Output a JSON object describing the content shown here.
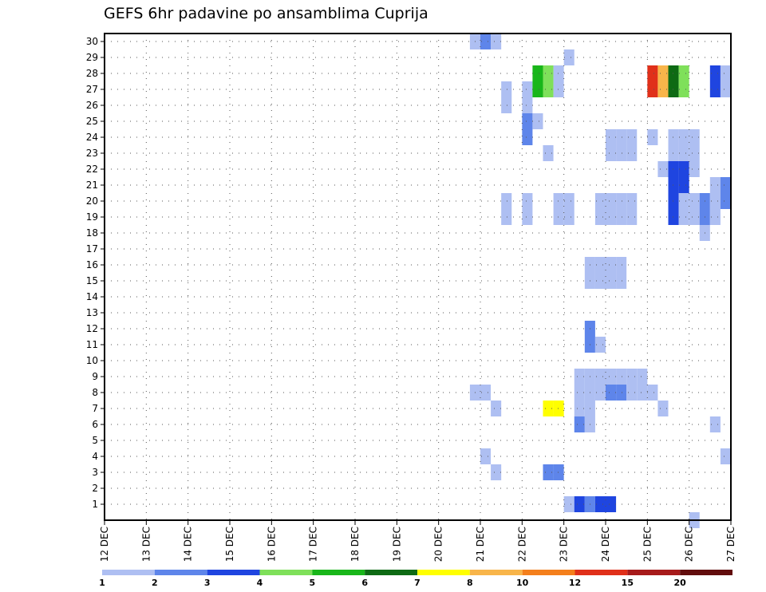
{
  "chart_data": {
    "type": "heatmap",
    "title": "GEFS 6hr padavine po ansamblima Cuprija",
    "xlabel": "",
    "ylabel": "",
    "x_tick_labels": [
      "12 DEC",
      "13 DEC",
      "14 DEC",
      "15 DEC",
      "16 DEC",
      "17 DEC",
      "18 DEC",
      "19 DEC",
      "20 DEC",
      "21 DEC",
      "22 DEC",
      "23 DEC",
      "24 DEC",
      "25 DEC",
      "26 DEC",
      "27 DEC"
    ],
    "x_unit": "6-hour step from 12 DEC",
    "xlim": [
      0,
      60
    ],
    "y_tick_labels": [
      "1",
      "2",
      "3",
      "4",
      "5",
      "6",
      "7",
      "8",
      "9",
      "10",
      "11",
      "12",
      "13",
      "14",
      "15",
      "16",
      "17",
      "18",
      "19",
      "20",
      "21",
      "22",
      "23",
      "24",
      "25",
      "26",
      "27",
      "28",
      "29",
      "30"
    ],
    "ylim": [
      0,
      30
    ],
    "grid": true,
    "colorbar": {
      "labels": [
        "1",
        "2",
        "3",
        "4",
        "5",
        "6",
        "7",
        "8",
        "10",
        "12",
        "15",
        "20"
      ],
      "colors": [
        "#aebff2",
        "#5e85ea",
        "#1f45e0",
        "#7fe05a",
        "#19b61a",
        "#0e6a14",
        "#ffff00",
        "#f8b54a",
        "#f47f1c",
        "#e0301a",
        "#a71b1b",
        "#620d0d"
      ]
    },
    "cells": [
      {
        "member": 1,
        "step": 44.5,
        "cls": 1
      },
      {
        "member": 1,
        "step": 45.5,
        "cls": 3
      },
      {
        "member": 1,
        "step": 46.5,
        "cls": 2
      },
      {
        "member": 1,
        "step": 47.5,
        "cls": 3
      },
      {
        "member": 1,
        "step": 48.5,
        "cls": 3
      },
      {
        "member": 3,
        "step": 42.5,
        "cls": 2
      },
      {
        "member": 3,
        "step": 43.5,
        "cls": 2
      },
      {
        "member": 4,
        "step": 36.5,
        "cls": 1
      },
      {
        "member": 4,
        "step": 59.5,
        "cls": 1
      },
      {
        "member": 3,
        "step": 37.5,
        "cls": 1
      },
      {
        "member": 6,
        "step": 45.5,
        "cls": 2
      },
      {
        "member": 6,
        "step": 46.5,
        "cls": 1
      },
      {
        "member": 6,
        "step": 58.5,
        "cls": 1
      },
      {
        "member": 7,
        "step": 37.5,
        "cls": 1
      },
      {
        "member": 7,
        "step": 42.5,
        "cls": 7
      },
      {
        "member": 7,
        "step": 43.5,
        "cls": 7
      },
      {
        "member": 7,
        "step": 45.5,
        "cls": 1
      },
      {
        "member": 7,
        "step": 46.5,
        "cls": 1
      },
      {
        "member": 7,
        "step": 53.5,
        "cls": 1
      },
      {
        "member": 8,
        "step": 35.5,
        "cls": 1
      },
      {
        "member": 8,
        "step": 36.5,
        "cls": 1
      },
      {
        "member": 8,
        "step": 45.5,
        "cls": 1
      },
      {
        "member": 8,
        "step": 46.5,
        "cls": 1
      },
      {
        "member": 8,
        "step": 47.5,
        "cls": 1
      },
      {
        "member": 8,
        "step": 48.5,
        "cls": 2
      },
      {
        "member": 8,
        "step": 49.5,
        "cls": 2
      },
      {
        "member": 8,
        "step": 50.5,
        "cls": 1
      },
      {
        "member": 8,
        "step": 51.5,
        "cls": 1
      },
      {
        "member": 8,
        "step": 52.5,
        "cls": 1
      },
      {
        "member": 9,
        "step": 45.5,
        "cls": 1
      },
      {
        "member": 9,
        "step": 46.5,
        "cls": 1
      },
      {
        "member": 9,
        "step": 47.5,
        "cls": 1
      },
      {
        "member": 9,
        "step": 48.5,
        "cls": 1
      },
      {
        "member": 9,
        "step": 49.5,
        "cls": 1
      },
      {
        "member": 9,
        "step": 50.5,
        "cls": 1
      },
      {
        "member": 9,
        "step": 51.5,
        "cls": 1
      },
      {
        "member": 11,
        "step": 46.5,
        "cls": 2
      },
      {
        "member": 11,
        "step": 47.5,
        "cls": 1
      },
      {
        "member": 12,
        "step": 46.5,
        "cls": 2
      },
      {
        "member": 15,
        "step": 46.5,
        "cls": 1
      },
      {
        "member": 15,
        "step": 47.5,
        "cls": 1
      },
      {
        "member": 15,
        "step": 48.5,
        "cls": 1
      },
      {
        "member": 15,
        "step": 49.5,
        "cls": 1
      },
      {
        "member": 16,
        "step": 46.5,
        "cls": 1
      },
      {
        "member": 16,
        "step": 47.5,
        "cls": 1
      },
      {
        "member": 16,
        "step": 48.5,
        "cls": 1
      },
      {
        "member": 16,
        "step": 49.5,
        "cls": 1
      },
      {
        "member": 18,
        "step": 57.5,
        "cls": 1
      },
      {
        "member": 19,
        "step": 38.5,
        "cls": 1
      },
      {
        "member": 19,
        "step": 40.5,
        "cls": 1
      },
      {
        "member": 19,
        "step": 43.5,
        "cls": 1
      },
      {
        "member": 19,
        "step": 44.5,
        "cls": 1
      },
      {
        "member": 19,
        "step": 47.5,
        "cls": 1
      },
      {
        "member": 19,
        "step": 48.5,
        "cls": 1
      },
      {
        "member": 19,
        "step": 49.5,
        "cls": 1
      },
      {
        "member": 19,
        "step": 50.5,
        "cls": 1
      },
      {
        "member": 19,
        "step": 54.5,
        "cls": 3
      },
      {
        "member": 19,
        "step": 55.5,
        "cls": 1
      },
      {
        "member": 19,
        "step": 56.5,
        "cls": 1
      },
      {
        "member": 19,
        "step": 57.5,
        "cls": 2
      },
      {
        "member": 19,
        "step": 58.5,
        "cls": 1
      },
      {
        "member": 20,
        "step": 38.5,
        "cls": 1
      },
      {
        "member": 20,
        "step": 40.5,
        "cls": 1
      },
      {
        "member": 20,
        "step": 43.5,
        "cls": 1
      },
      {
        "member": 20,
        "step": 44.5,
        "cls": 1
      },
      {
        "member": 20,
        "step": 47.5,
        "cls": 1
      },
      {
        "member": 20,
        "step": 48.5,
        "cls": 1
      },
      {
        "member": 20,
        "step": 49.5,
        "cls": 1
      },
      {
        "member": 20,
        "step": 50.5,
        "cls": 1
      },
      {
        "member": 20,
        "step": 54.5,
        "cls": 3
      },
      {
        "member": 20,
        "step": 55.5,
        "cls": 1
      },
      {
        "member": 20,
        "step": 56.5,
        "cls": 1
      },
      {
        "member": 20,
        "step": 57.5,
        "cls": 2
      },
      {
        "member": 20,
        "step": 58.5,
        "cls": 1
      },
      {
        "member": 20,
        "step": 59.5,
        "cls": 2
      },
      {
        "member": 21,
        "step": 58.5,
        "cls": 1
      },
      {
        "member": 21,
        "step": 59.5,
        "cls": 2
      },
      {
        "member": 22,
        "step": 53.5,
        "cls": 1
      },
      {
        "member": 22,
        "step": 54.5,
        "cls": 3
      },
      {
        "member": 22,
        "step": 55.5,
        "cls": 3
      },
      {
        "member": 22,
        "step": 56.5,
        "cls": 1
      },
      {
        "member": 21,
        "step": 54.5,
        "cls": 3
      },
      {
        "member": 21,
        "step": 55.5,
        "cls": 3
      },
      {
        "member": 23,
        "step": 42.5,
        "cls": 1
      },
      {
        "member": 23,
        "step": 48.5,
        "cls": 1
      },
      {
        "member": 23,
        "step": 49.5,
        "cls": 1
      },
      {
        "member": 23,
        "step": 50.5,
        "cls": 1
      },
      {
        "member": 23,
        "step": 54.5,
        "cls": 1
      },
      {
        "member": 23,
        "step": 55.5,
        "cls": 1
      },
      {
        "member": 23,
        "step": 56.5,
        "cls": 1
      },
      {
        "member": 24,
        "step": 48.5,
        "cls": 1
      },
      {
        "member": 24,
        "step": 49.5,
        "cls": 1
      },
      {
        "member": 24,
        "step": 50.5,
        "cls": 1
      },
      {
        "member": 24,
        "step": 52.5,
        "cls": 1
      },
      {
        "member": 24,
        "step": 54.5,
        "cls": 1
      },
      {
        "member": 24,
        "step": 55.5,
        "cls": 1
      },
      {
        "member": 24,
        "step": 56.5,
        "cls": 1
      },
      {
        "member": 25,
        "step": 40.5,
        "cls": 2
      },
      {
        "member": 25,
        "step": 41.5,
        "cls": 1
      },
      {
        "member": 24,
        "step": 40.5,
        "cls": 2
      },
      {
        "member": 26,
        "step": 38.5,
        "cls": 1
      },
      {
        "member": 26,
        "step": 40.5,
        "cls": 1
      },
      {
        "member": 27,
        "step": 38.5,
        "cls": 1
      },
      {
        "member": 27,
        "step": 40.5,
        "cls": 1
      },
      {
        "member": 28,
        "step": 41.5,
        "cls": 5
      },
      {
        "member": 28,
        "step": 42.5,
        "cls": 4
      },
      {
        "member": 28,
        "step": 43.5,
        "cls": 1
      },
      {
        "member": 28,
        "step": 52.5,
        "cls": 10
      },
      {
        "member": 28,
        "step": 53.5,
        "cls": 8
      },
      {
        "member": 28,
        "step": 54.5,
        "cls": 6
      },
      {
        "member": 28,
        "step": 55.5,
        "cls": 4
      },
      {
        "member": 28,
        "step": 58.5,
        "cls": 3
      },
      {
        "member": 28,
        "step": 59.5,
        "cls": 1
      },
      {
        "member": 27,
        "step": 41.5,
        "cls": 5
      },
      {
        "member": 27,
        "step": 42.5,
        "cls": 4
      },
      {
        "member": 27,
        "step": 43.5,
        "cls": 1
      },
      {
        "member": 27,
        "step": 52.5,
        "cls": 10
      },
      {
        "member": 27,
        "step": 53.5,
        "cls": 8
      },
      {
        "member": 27,
        "step": 54.5,
        "cls": 6
      },
      {
        "member": 27,
        "step": 55.5,
        "cls": 4
      },
      {
        "member": 27,
        "step": 58.5,
        "cls": 3
      },
      {
        "member": 27,
        "step": 59.5,
        "cls": 1
      },
      {
        "member": 29,
        "step": 44.5,
        "cls": 1
      },
      {
        "member": 30,
        "step": 35.5,
        "cls": 1
      },
      {
        "member": 30,
        "step": 36.5,
        "cls": 2
      },
      {
        "member": 30,
        "step": 37.5,
        "cls": 1
      },
      {
        "member": 0,
        "step": 56.5,
        "cls": 1
      }
    ]
  }
}
